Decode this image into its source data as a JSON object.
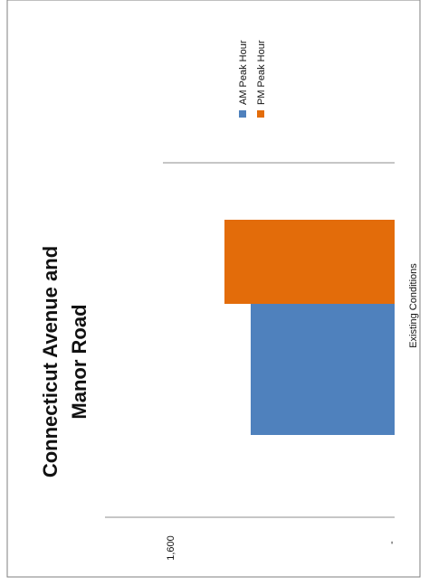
{
  "chart_data": {
    "type": "bar",
    "title": "Connecticut Avenue and Manor Road",
    "title_lines": [
      "Connecticut Avenue and",
      "Manor Road"
    ],
    "categories": [
      "Existing Conditions"
    ],
    "series": [
      {
        "name": "AM Peak Hour",
        "values": [
          1070
        ],
        "color": "#4f81bd"
      },
      {
        "name": "PM Peak Hour",
        "values": [
          1240
        ],
        "color": "#e36c0a"
      }
    ],
    "tick_labels": [
      "-",
      "1,600"
    ],
    "ylim": [
      0,
      1700
    ],
    "gridlines": [
      0,
      1600
    ],
    "grid": true,
    "legend": "top-right",
    "orientation": "rotated-90"
  }
}
